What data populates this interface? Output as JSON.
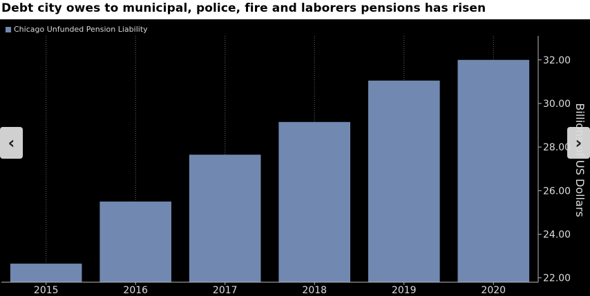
{
  "title": "Debt city owes to municipal, police, fire and laborers pensions has risen",
  "nav": {
    "prev_icon": "‹",
    "next_icon": "›"
  },
  "chart_data": {
    "type": "bar",
    "legend": {
      "label": "Chicago Unfunded Pension Liability",
      "placement": "top-left"
    },
    "categories": [
      "2015",
      "2016",
      "2017",
      "2018",
      "2019",
      "2020"
    ],
    "series": [
      {
        "name": "Chicago Unfunded Pension Liability",
        "values": [
          22.65,
          25.5,
          27.65,
          29.15,
          31.05,
          32.0
        ]
      }
    ],
    "ylabel": "Billions of US Dollars",
    "ylim": [
      21.8,
      33.1
    ],
    "yticks": [
      "22.00",
      "24.00",
      "26.00",
      "28.00",
      "30.00",
      "32.00"
    ],
    "y_axis_side": "right",
    "grid": {
      "vertical": true,
      "horizontal": false
    },
    "colors": {
      "bar": "#7189b0",
      "background": "#000000",
      "text": "#dddddd",
      "grid": "#6a6a6a"
    }
  }
}
